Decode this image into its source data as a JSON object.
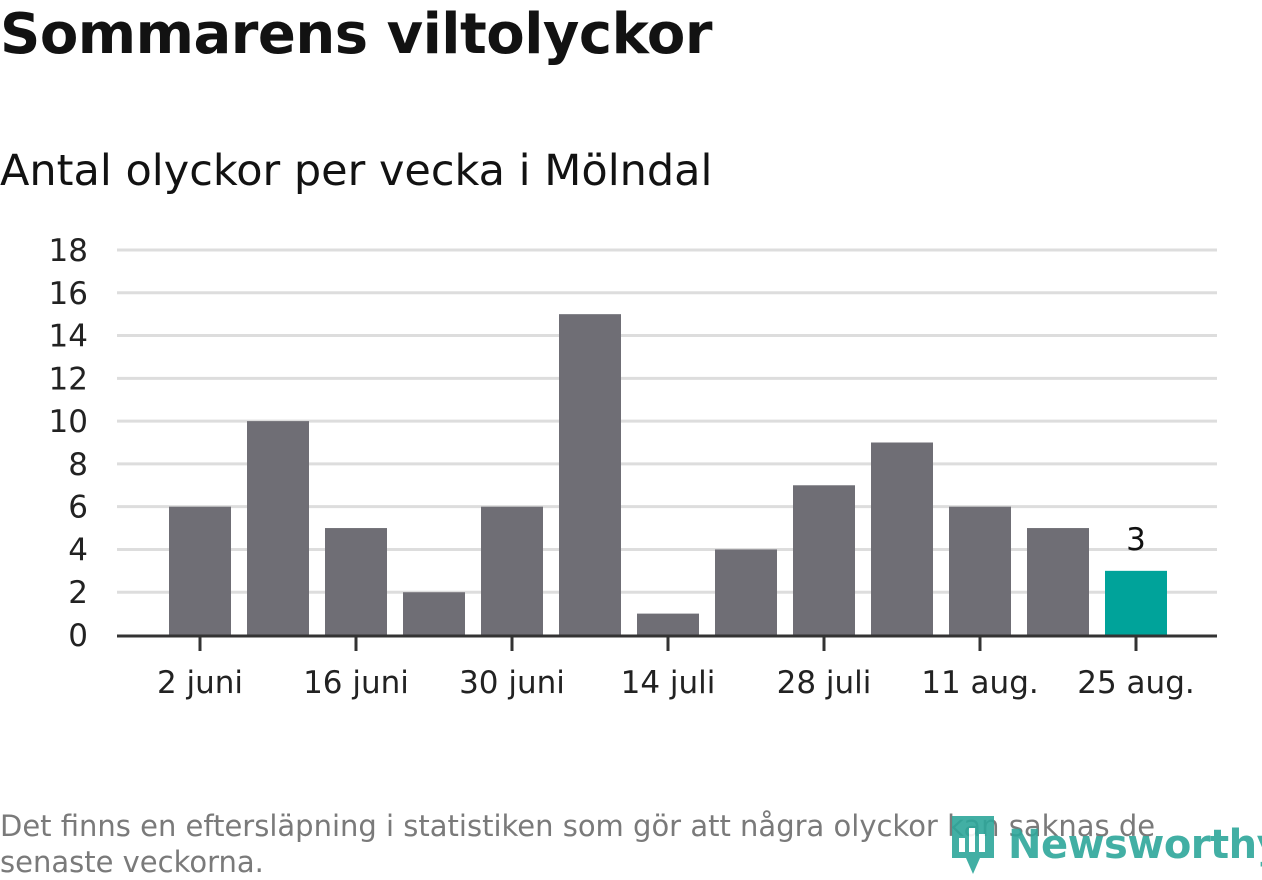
{
  "title": "Sommarens viltolyckor",
  "subtitle": "Antal olyckor per vecka i Mölndal",
  "footnote": "Det finns en eftersläpning i statistiken som gör att några olyckor kan saknas de senaste veckorna.",
  "logo": {
    "text": "Newsworthy",
    "icon": "bar-chart-pin-icon"
  },
  "colors": {
    "bar": "#6f6e75",
    "highlight": "#00a39a",
    "grid": "#dddddd",
    "axis": "#333333",
    "logo": "#2ea79b"
  },
  "chart_data": {
    "type": "bar",
    "title": "Sommarens viltolyckor",
    "subtitle": "Antal olyckor per vecka i Mölndal",
    "values": [
      6,
      10,
      5,
      2,
      6,
      15,
      1,
      4,
      7,
      9,
      6,
      5,
      3
    ],
    "highlight_index": 12,
    "data_labels": [
      {
        "index": 12,
        "text": "3"
      }
    ],
    "x_tick_labels": [
      "2 juni",
      "16 juni",
      "30 juni",
      "14 juli",
      "28 juli",
      "11 aug.",
      "25 aug."
    ],
    "x_tick_bar_indices": [
      0,
      2,
      4,
      6,
      8,
      10,
      12
    ],
    "y_ticks": [
      0,
      2,
      4,
      6,
      8,
      10,
      12,
      14,
      16,
      18
    ],
    "ylim": [
      0,
      18
    ],
    "xlabel": "",
    "ylabel": "",
    "grid": true
  }
}
